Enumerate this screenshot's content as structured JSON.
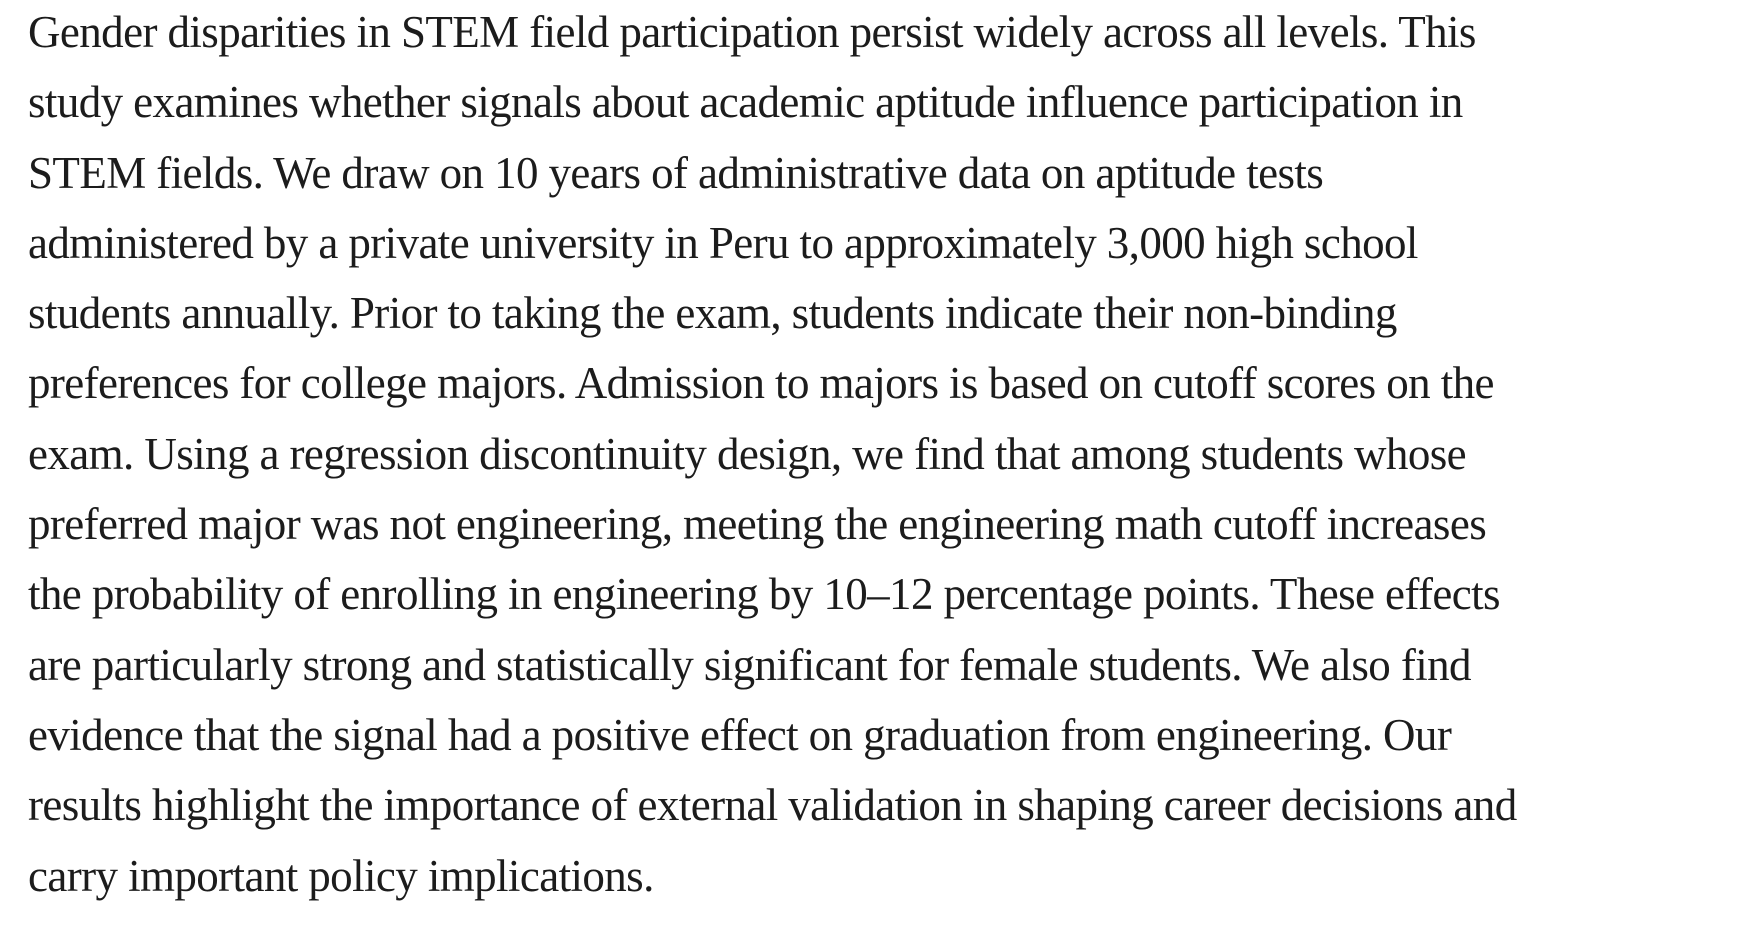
{
  "page": {
    "background_color": "#ffffff"
  },
  "abstract": {
    "text_color": "#1c1c1c",
    "lines": [
      "Gender disparities in STEM field participation persist widely across all levels. This",
      "study examines whether signals about academic aptitude influence participation in",
      "STEM fields. We draw on 10 years of administrative data on aptitude tests",
      "administered by a private university in Peru to approximately 3,000 high school",
      "students annually. Prior to taking the exam, students indicate their non-binding",
      "preferences for college majors. Admission to majors is based on cutoff scores on the",
      "exam. Using a regression discontinuity design, we find that among students whose",
      "preferred major was not engineering, meeting the engineering math cutoff increases",
      "the probability of enrolling in engineering by 10–12 percentage points. These effects",
      "are particularly strong and statistically significant for female students. We also find",
      "evidence that the signal had a positive effect on graduation from engineering. Our",
      "results highlight the importance of external validation in shaping career decisions and",
      "carry important policy implications."
    ]
  }
}
